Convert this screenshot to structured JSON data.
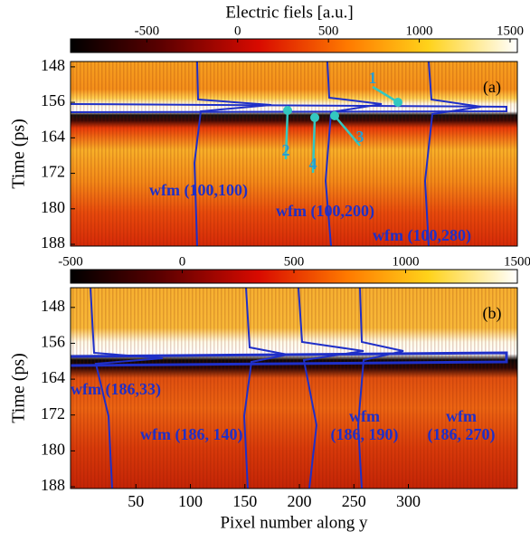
{
  "chart_data": [
    {
      "type": "heatmap",
      "colorbar_title": "Electric fiels [a.u.]",
      "clim": [
        -920,
        1540
      ],
      "cticks": [
        -500,
        0,
        500,
        1000,
        1500
      ],
      "y_label": "Time (ps)",
      "ylim": [
        146.8,
        188.4
      ],
      "yticks": [
        148,
        156,
        164,
        172,
        180,
        188
      ],
      "xlim": [
        -10,
        400
      ],
      "panel_label": "(a)",
      "markers": [
        "1",
        "2",
        "3",
        "4"
      ],
      "waveform_labels": [
        [
          "wfm  (100,100)"
        ],
        [
          "wfm  (100,200)"
        ],
        [
          "wfm  (100,280)"
        ]
      ]
    },
    {
      "type": "heatmap",
      "clim": [
        -500,
        1500
      ],
      "cticks": [
        -500,
        0,
        500,
        1000,
        1500
      ],
      "y_label": "Time (ps)",
      "ylim": [
        143.6,
        188.4
      ],
      "yticks": [
        148,
        156,
        164,
        172,
        180,
        188
      ],
      "xlim": [
        -10,
        400
      ],
      "xticks": [
        50,
        100,
        150,
        200,
        250,
        300
      ],
      "x_label": "Pixel number along y",
      "panel_label": "(b)",
      "waveform_labels": [
        [
          "wfm  (186,33)"
        ],
        [
          "wfm  (186, 140)"
        ],
        [
          "wfm",
          "(186, 190)"
        ],
        [
          "wfm",
          "(186, 270)"
        ]
      ]
    }
  ]
}
